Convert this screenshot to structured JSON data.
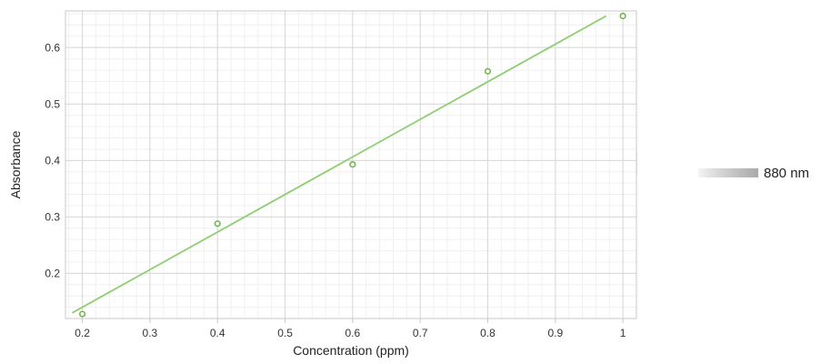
{
  "chart_data": {
    "type": "scatter",
    "xlabel": "Concentration (ppm)",
    "ylabel": "Absorbance",
    "xlim": [
      0.175,
      1.02
    ],
    "ylim": [
      0.12,
      0.665
    ],
    "x_ticks": [
      0.2,
      0.3,
      0.4,
      0.5,
      0.6,
      0.7,
      0.8,
      0.9,
      1
    ],
    "x_tick_labels": [
      "0.2",
      "0.3",
      "0.4",
      "0.5",
      "0.6",
      "0.7",
      "0.8",
      "0.9",
      "1"
    ],
    "y_ticks": [
      0.2,
      0.3,
      0.4,
      0.5,
      0.6
    ],
    "y_tick_labels": [
      "0.2",
      "0.3",
      "0.4",
      "0.5",
      "0.6"
    ],
    "grid": true,
    "series": [
      {
        "name": "880 nm",
        "color": "#6fb64a",
        "points": [
          {
            "x": 0.2,
            "y": 0.128
          },
          {
            "x": 0.4,
            "y": 0.288
          },
          {
            "x": 0.6,
            "y": 0.393
          },
          {
            "x": 0.8,
            "y": 0.558
          },
          {
            "x": 1.0,
            "y": 0.656
          }
        ]
      }
    ],
    "fit_line": {
      "color": "#8fce72",
      "x": [
        0.185,
        0.975
      ],
      "y": [
        0.13,
        0.656
      ]
    },
    "legend": {
      "label": "880 nm",
      "placement": "right"
    }
  }
}
